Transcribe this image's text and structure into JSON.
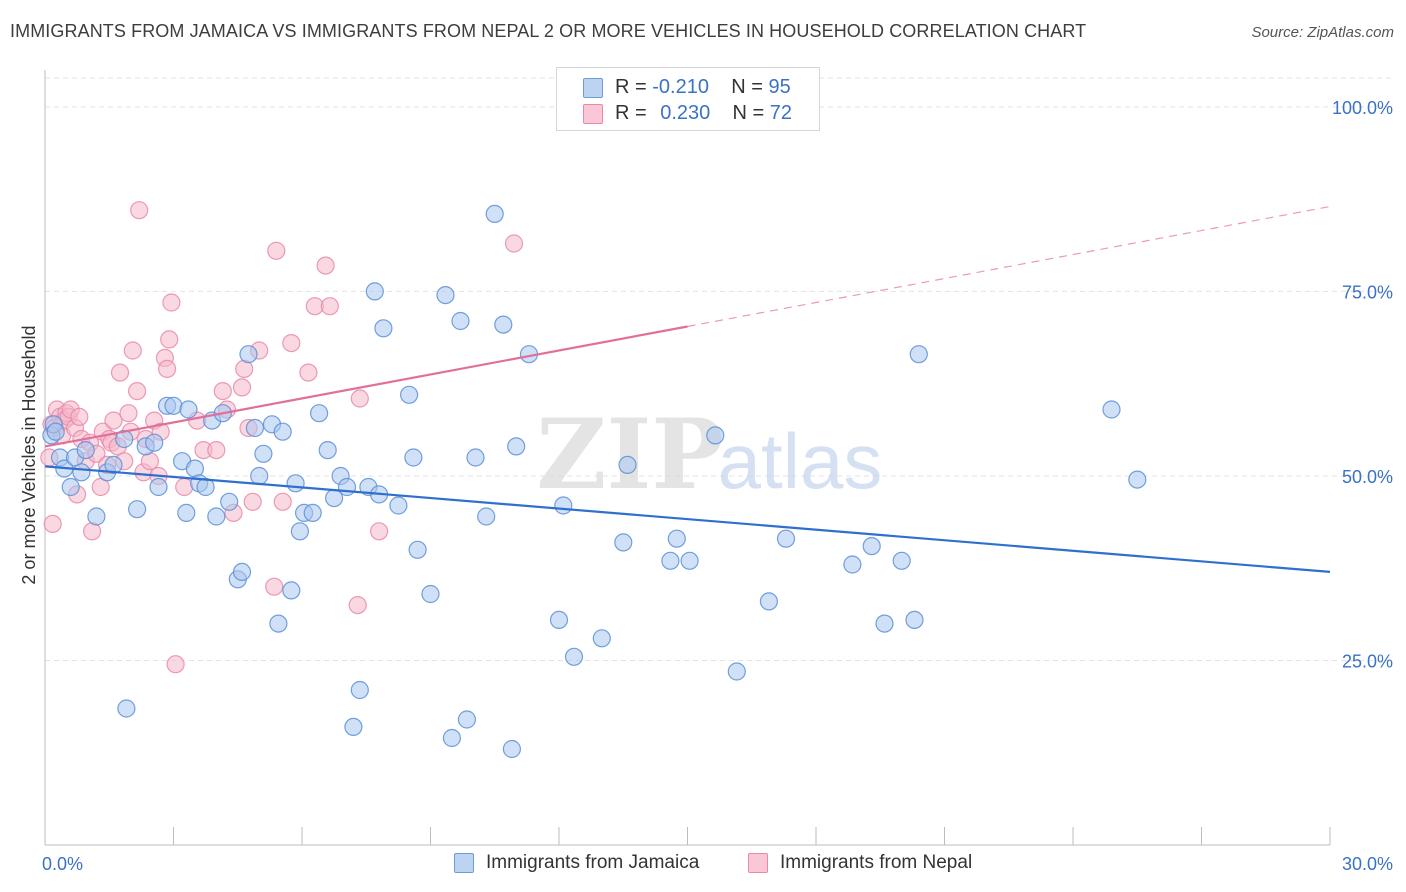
{
  "header": {
    "title": "IMMIGRANTS FROM JAMAICA VS IMMIGRANTS FROM NEPAL 2 OR MORE VEHICLES IN HOUSEHOLD CORRELATION CHART",
    "source": "Source: ZipAtlas.com"
  },
  "watermark": {
    "zip": "ZIP",
    "atlas": "atlas"
  },
  "legend": {
    "rows": [
      {
        "r_label": "R =",
        "r_value": "-0.210",
        "n_label": "N =",
        "n_value": "95"
      },
      {
        "r_label": "R =",
        "r_value": "0.230",
        "n_label": "N =",
        "n_value": "72"
      }
    ]
  },
  "colors": {
    "jamaica_fill": "#a9c6ee",
    "jamaica_stroke": "#5b8fd6",
    "jamaica_line": "#2f6fcf",
    "nepal_fill": "#f6b8cb",
    "nepal_stroke": "#e889a8",
    "nepal_line": "#e0709a",
    "tick_label": "#3a72c6",
    "grid": "#e3e3e3"
  },
  "chart_data": {
    "type": "scatter",
    "title": "IMMIGRANTS FROM JAMAICA VS IMMIGRANTS FROM NEPAL 2 OR MORE VEHICLES IN HOUSEHOLD CORRELATION CHART",
    "xlabel": "",
    "ylabel": "2 or more Vehicles in Household",
    "xlim": [
      0,
      30
    ],
    "ylim": [
      0,
      105
    ],
    "x_tick_labels": [
      "0.0%",
      "30.0%"
    ],
    "y_ticks": [
      25,
      50,
      75,
      100
    ],
    "y_tick_labels": [
      "25.0%",
      "50.0%",
      "75.0%",
      "100.0%"
    ],
    "grid": true,
    "legend_position": "top-center",
    "series": [
      {
        "name": "Immigrants from Jamaica",
        "r": -0.21,
        "n": 95,
        "trend": {
          "x": [
            0,
            30
          ],
          "y": [
            51.3,
            37.0
          ],
          "dashed_from": null
        },
        "points": [
          [
            0.15,
            55.5
          ],
          [
            0.2,
            57.0
          ],
          [
            0.25,
            56.0
          ],
          [
            0.35,
            52.5
          ],
          [
            0.45,
            51.0
          ],
          [
            0.6,
            48.5
          ],
          [
            0.7,
            52.5
          ],
          [
            0.85,
            50.5
          ],
          [
            0.95,
            53.5
          ],
          [
            1.2,
            44.5
          ],
          [
            1.45,
            50.5
          ],
          [
            1.6,
            51.5
          ],
          [
            1.85,
            55.0
          ],
          [
            1.9,
            18.5
          ],
          [
            2.15,
            45.5
          ],
          [
            2.35,
            54.0
          ],
          [
            2.55,
            54.5
          ],
          [
            2.65,
            48.5
          ],
          [
            2.85,
            59.5
          ],
          [
            3.0,
            59.5
          ],
          [
            3.2,
            52.0
          ],
          [
            3.3,
            45.0
          ],
          [
            3.35,
            59.0
          ],
          [
            3.5,
            51.0
          ],
          [
            3.6,
            49.0
          ],
          [
            3.75,
            48.5
          ],
          [
            3.9,
            57.5
          ],
          [
            4.0,
            44.5
          ],
          [
            4.15,
            58.5
          ],
          [
            4.3,
            46.5
          ],
          [
            4.5,
            36.0
          ],
          [
            4.6,
            37.0
          ],
          [
            4.75,
            66.5
          ],
          [
            4.9,
            56.5
          ],
          [
            5.0,
            50.0
          ],
          [
            5.1,
            53.0
          ],
          [
            5.3,
            57.0
          ],
          [
            5.45,
            30.0
          ],
          [
            5.55,
            56.0
          ],
          [
            5.75,
            34.5
          ],
          [
            5.85,
            49.0
          ],
          [
            5.95,
            42.5
          ],
          [
            6.05,
            45.0
          ],
          [
            6.25,
            45.0
          ],
          [
            6.4,
            58.5
          ],
          [
            6.6,
            53.5
          ],
          [
            6.75,
            47.0
          ],
          [
            6.9,
            50.0
          ],
          [
            7.05,
            48.5
          ],
          [
            7.2,
            16.0
          ],
          [
            7.35,
            21.0
          ],
          [
            7.55,
            48.5
          ],
          [
            7.7,
            75.0
          ],
          [
            7.8,
            47.5
          ],
          [
            7.9,
            70.0
          ],
          [
            8.25,
            46.0
          ],
          [
            8.5,
            61.0
          ],
          [
            8.6,
            52.5
          ],
          [
            8.7,
            40.0
          ],
          [
            9.0,
            34.0
          ],
          [
            9.35,
            74.5
          ],
          [
            9.5,
            14.5
          ],
          [
            9.7,
            71.0
          ],
          [
            9.85,
            17.0
          ],
          [
            10.05,
            52.5
          ],
          [
            10.3,
            44.5
          ],
          [
            10.5,
            85.5
          ],
          [
            10.7,
            70.5
          ],
          [
            10.9,
            13.0
          ],
          [
            11.0,
            54.0
          ],
          [
            11.3,
            66.5
          ],
          [
            12.0,
            30.5
          ],
          [
            12.1,
            46.0
          ],
          [
            12.35,
            25.5
          ],
          [
            13.0,
            28.0
          ],
          [
            13.5,
            41.0
          ],
          [
            13.6,
            51.5
          ],
          [
            14.6,
            38.5
          ],
          [
            14.75,
            41.5
          ],
          [
            15.05,
            38.5
          ],
          [
            15.65,
            55.5
          ],
          [
            16.15,
            23.5
          ],
          [
            16.9,
            33.0
          ],
          [
            17.3,
            41.5
          ],
          [
            18.85,
            38.0
          ],
          [
            19.3,
            40.5
          ],
          [
            19.6,
            30.0
          ],
          [
            20.0,
            38.5
          ],
          [
            20.3,
            30.5
          ],
          [
            20.4,
            66.5
          ],
          [
            24.9,
            59.0
          ],
          [
            25.5,
            49.5
          ]
        ]
      },
      {
        "name": "Immigrants from Nepal",
        "r": 0.23,
        "n": 72,
        "trend": {
          "x": [
            0,
            30
          ],
          "y": [
            54.0,
            86.5
          ],
          "dashed_from": 15.0
        },
        "points": [
          [
            0.1,
            52.5
          ],
          [
            0.15,
            57.0
          ],
          [
            0.18,
            43.5
          ],
          [
            0.22,
            56.5
          ],
          [
            0.28,
            59.0
          ],
          [
            0.35,
            58.0
          ],
          [
            0.4,
            55.5
          ],
          [
            0.45,
            57.5
          ],
          [
            0.5,
            58.5
          ],
          [
            0.55,
            58.0
          ],
          [
            0.6,
            59.0
          ],
          [
            0.7,
            56.5
          ],
          [
            0.75,
            47.5
          ],
          [
            0.8,
            58.0
          ],
          [
            0.85,
            55.0
          ],
          [
            0.95,
            52.0
          ],
          [
            1.05,
            54.5
          ],
          [
            1.1,
            42.5
          ],
          [
            1.2,
            53.0
          ],
          [
            1.3,
            48.5
          ],
          [
            1.35,
            56.0
          ],
          [
            1.45,
            51.5
          ],
          [
            1.5,
            55.0
          ],
          [
            1.55,
            54.5
          ],
          [
            1.6,
            57.5
          ],
          [
            1.7,
            54.0
          ],
          [
            1.75,
            64.0
          ],
          [
            1.85,
            52.0
          ],
          [
            1.95,
            58.5
          ],
          [
            2.0,
            56.0
          ],
          [
            2.05,
            67.0
          ],
          [
            2.15,
            61.5
          ],
          [
            2.2,
            86.0
          ],
          [
            2.3,
            50.5
          ],
          [
            2.35,
            55.0
          ],
          [
            2.45,
            52.0
          ],
          [
            2.55,
            57.5
          ],
          [
            2.65,
            50.0
          ],
          [
            2.7,
            56.0
          ],
          [
            2.8,
            66.0
          ],
          [
            2.85,
            64.5
          ],
          [
            2.9,
            68.5
          ],
          [
            2.95,
            73.5
          ],
          [
            3.05,
            24.5
          ],
          [
            3.25,
            48.5
          ],
          [
            3.55,
            57.5
          ],
          [
            3.7,
            53.5
          ],
          [
            4.0,
            53.5
          ],
          [
            4.15,
            61.5
          ],
          [
            4.25,
            59.0
          ],
          [
            4.4,
            45.0
          ],
          [
            4.6,
            62.0
          ],
          [
            4.65,
            64.5
          ],
          [
            4.75,
            56.5
          ],
          [
            4.85,
            46.5
          ],
          [
            5.0,
            67.0
          ],
          [
            5.35,
            35.0
          ],
          [
            5.55,
            46.5
          ],
          [
            5.75,
            68.0
          ],
          [
            6.15,
            64.0
          ],
          [
            6.3,
            73.0
          ],
          [
            6.55,
            78.5
          ],
          [
            6.65,
            73.0
          ],
          [
            7.3,
            32.5
          ],
          [
            7.35,
            60.5
          ],
          [
            7.8,
            42.5
          ],
          [
            5.4,
            80.5
          ],
          [
            10.95,
            81.5
          ]
        ]
      }
    ]
  }
}
